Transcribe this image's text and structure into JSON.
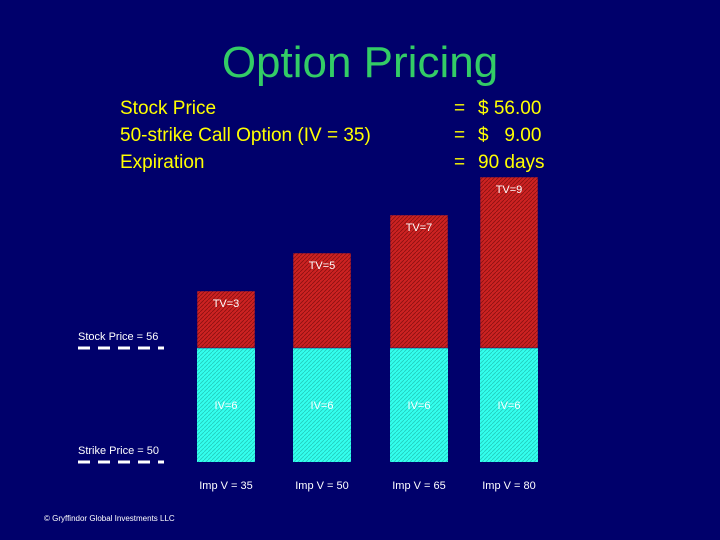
{
  "title": "Option Pricing",
  "params": [
    {
      "label": "Stock Price",
      "value": "$ 56.00"
    },
    {
      "label": "50-strike Call Option (IV = 35)",
      "value": "$   9.00"
    },
    {
      "label": "Expiration",
      "value": "90 days"
    }
  ],
  "copyright": "© Gryffindor Global Investments LLC",
  "colors": {
    "background": "#00006b",
    "title": "#33cc66",
    "text": "#ffff00",
    "intrinsic": "#33ffee",
    "time_value": "#cc2222"
  },
  "chart_data": {
    "type": "bar",
    "stacked": true,
    "categories": [
      "Imp V = 35",
      "Imp V = 50",
      "Imp V = 65",
      "Imp V = 80"
    ],
    "series": [
      {
        "name": "IV",
        "values": [
          6,
          6,
          6,
          6
        ],
        "labels": [
          "IV=6",
          "IV=6",
          "IV=6",
          "IV=6"
        ]
      },
      {
        "name": "TV",
        "values": [
          3,
          5,
          7,
          9
        ],
        "labels": [
          "TV=3",
          "TV=5",
          "TV=7",
          "TV=9"
        ]
      }
    ],
    "reference_lines": [
      {
        "label": "Stock Price = 56",
        "value": 6
      },
      {
        "label": "Strike Price = 50",
        "value": 0
      }
    ],
    "ylim": [
      0,
      15
    ],
    "grid": false,
    "legend": "none"
  }
}
